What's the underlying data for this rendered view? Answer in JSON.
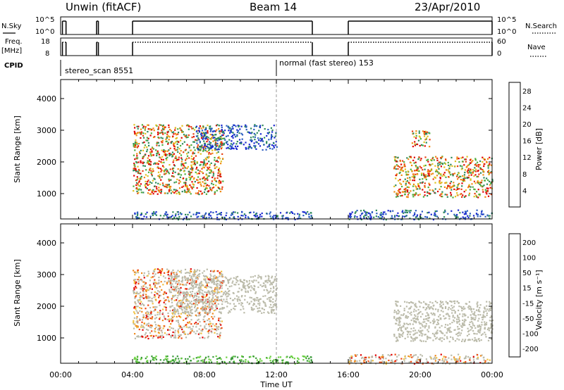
{
  "header": {
    "left": "Unwin (fitACF)",
    "center": "Beam 14",
    "right": "23/Apr/2010"
  },
  "panels": {
    "nsky_label": "N.Sky",
    "nsky_ticks": [
      "10^5",
      "10^0"
    ],
    "nsearch_label": "N.Search",
    "nsearch_ticks": [
      "10^5",
      "10^0"
    ],
    "freq_label_line1": "Freq.",
    "freq_label_line2": "[MHz]",
    "freq_ticks": [
      "18",
      "8"
    ],
    "nave_label": "Nave",
    "nave_ticks": [
      "60",
      "0"
    ],
    "cpid_label": "CPID",
    "cpid_segments": [
      {
        "label": "stereo_scan 8551",
        "start_hour": 0
      },
      {
        "label": "normal (fast stereo) 153",
        "start_hour": 12
      }
    ]
  },
  "x_axis": {
    "label": "Time UT",
    "ticks": [
      "00:00",
      "04:00",
      "08:00",
      "12:00",
      "16:00",
      "20:00",
      "00:00"
    ]
  },
  "colors": {
    "power": [
      "#1a28d0",
      "#2a5cc0",
      "#2e8a5a",
      "#4fae3c",
      "#e0c020",
      "#f08a10",
      "#e84010",
      "#e00000"
    ],
    "velocity": [
      "#e00000",
      "#f04a10",
      "#f08a20",
      "#f0c040",
      "#c8c8c0",
      "#6ad040",
      "#3a9a3a",
      "#2a5cc0",
      "#1a28d0"
    ],
    "ground_scatter": "#bbbbaa"
  },
  "chart_data": [
    {
      "type": "heatmap",
      "title": "",
      "xlabel": "Time UT",
      "ylabel": "Slant Range [km]",
      "xlim": [
        0,
        24
      ],
      "ylim": [
        200,
        4600
      ],
      "y_ticks": [
        "1000",
        "2000",
        "3000",
        "4000"
      ],
      "colorbar": {
        "label": "Power [dB]",
        "ticks": [
          "4",
          "8",
          "12",
          "16",
          "20",
          "24",
          "28"
        ],
        "range": [
          0,
          30
        ]
      },
      "scatter_regions": [
        {
          "x_range": [
            4.0,
            9.0
          ],
          "y_range": [
            1000,
            3200
          ],
          "level": "high"
        },
        {
          "x_range": [
            7.5,
            12.0
          ],
          "y_range": [
            2400,
            3200
          ],
          "level": "low"
        },
        {
          "x_range": [
            18.5,
            24.0
          ],
          "y_range": [
            900,
            2200
          ],
          "level": "high"
        },
        {
          "x_range": [
            19.5,
            20.5
          ],
          "y_range": [
            2500,
            3000
          ],
          "level": "high"
        },
        {
          "x_range": [
            4.0,
            14.0
          ],
          "y_range": [
            200,
            450
          ],
          "level": "low"
        },
        {
          "x_range": [
            16.0,
            24.0
          ],
          "y_range": [
            200,
            500
          ],
          "level": "low"
        }
      ]
    },
    {
      "type": "heatmap",
      "title": "",
      "xlabel": "Time UT",
      "ylabel": "Slant Range [km]",
      "xlim": [
        0,
        24
      ],
      "ylim": [
        200,
        4600
      ],
      "y_ticks": [
        "1000",
        "2000",
        "3000",
        "4000"
      ],
      "colorbar": {
        "label": "Velocity [m s⁻¹]",
        "ticks": [
          "200",
          "100",
          "50",
          "15",
          "-15",
          "-50",
          "-100",
          "-200"
        ],
        "range": [
          -250,
          250
        ]
      },
      "scatter_regions": [
        {
          "x_range": [
            4.0,
            9.0
          ],
          "y_range": [
            1000,
            3200
          ],
          "level": "negative"
        },
        {
          "x_range": [
            6.0,
            12.0
          ],
          "y_range": [
            1800,
            3000
          ],
          "level": "ground"
        },
        {
          "x_range": [
            18.5,
            24.0
          ],
          "y_range": [
            900,
            2200
          ],
          "level": "ground"
        },
        {
          "x_range": [
            4.0,
            14.0
          ],
          "y_range": [
            200,
            450
          ],
          "level": "positive"
        },
        {
          "x_range": [
            16.0,
            24.0
          ],
          "y_range": [
            200,
            500
          ],
          "level": "negative"
        }
      ]
    }
  ]
}
